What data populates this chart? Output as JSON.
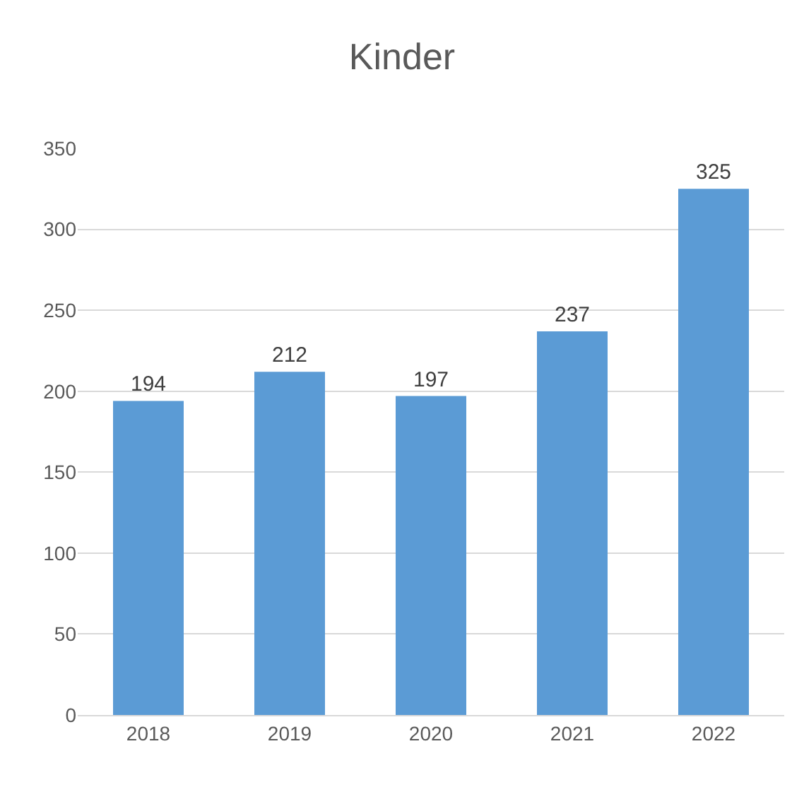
{
  "chart_data": {
    "type": "bar",
    "title": "Kinder",
    "categories": [
      "2018",
      "2019",
      "2020",
      "2021",
      "2022"
    ],
    "values": [
      194,
      212,
      197,
      237,
      325
    ],
    "color": "#5b9bd5",
    "ylim": [
      0,
      350
    ],
    "yticks": [
      0,
      50,
      100,
      150,
      200,
      250,
      300,
      350
    ],
    "grid": "y",
    "data_labels": true
  }
}
